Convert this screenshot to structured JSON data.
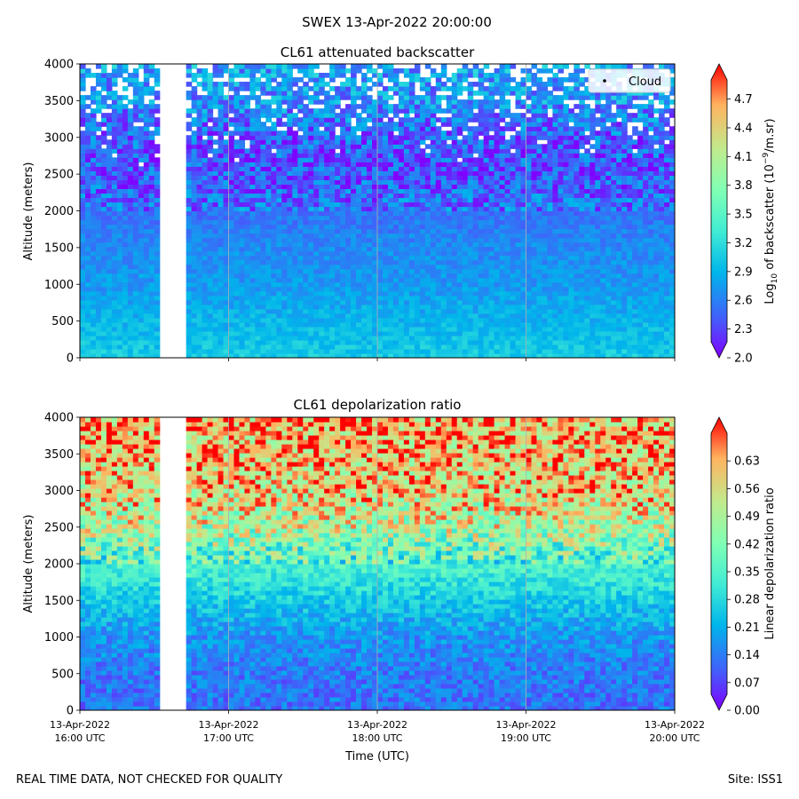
{
  "figure": {
    "suptitle": "SWEX 13-Apr-2022 20:00:00",
    "footer_left": "REAL TIME DATA, NOT CHECKED FOR QUALITY",
    "footer_right": "Site: ISS1"
  },
  "chart_data": [
    {
      "type": "heatmap",
      "title": "CL61 attenuated backscatter",
      "ylabel": "Altitude (meters)",
      "xlabel": "",
      "ylim": [
        0,
        4000
      ],
      "yticks": [
        "0",
        "500",
        "1000",
        "1500",
        "2000",
        "2500",
        "3000",
        "3500",
        "4000"
      ],
      "xlim": [
        "13-Apr-2022 16:00 UTC",
        "13-Apr-2022 20:00 UTC"
      ],
      "xtick_labels_visible": false,
      "data_gap": {
        "start": "16:33 UTC",
        "end": "16:42 UTC"
      },
      "grid": "vertical",
      "legend": {
        "entries": [
          "Cloud"
        ],
        "placement": "upper right"
      },
      "colorbar": {
        "label_prefix": "Log",
        "label_sub": "10",
        "label_mid": " of backscatter (10",
        "label_sup": "−9",
        "label_suffix": "/m.sr)",
        "min": 2.0,
        "max": 4.9,
        "ticks": [
          "2.0",
          "2.3",
          "2.6",
          "2.9",
          "3.2",
          "3.5",
          "3.8",
          "4.1",
          "4.4",
          "4.7"
        ],
        "colormap": "rainbow",
        "extend": "both"
      },
      "profile": [
        {
          "altitude": 0,
          "value": 3.0
        },
        {
          "altitude": 500,
          "value": 2.85
        },
        {
          "altitude": 1000,
          "value": 2.7
        },
        {
          "altitude": 1500,
          "value": 2.62
        },
        {
          "altitude": 2000,
          "value": 2.5
        },
        {
          "altitude": 2500,
          "value": 2.35
        },
        {
          "altitude": 3000,
          "value": 2.4
        },
        {
          "altitude": 3500,
          "value": 2.65
        },
        {
          "altitude": 4000,
          "value": 2.75
        }
      ]
    },
    {
      "type": "heatmap",
      "title": "CL61 depolarization ratio",
      "ylabel": "Altitude (meters)",
      "xlabel": "Time (UTC)",
      "ylim": [
        0,
        4000
      ],
      "yticks": [
        "0",
        "500",
        "1000",
        "1500",
        "2000",
        "2500",
        "3000",
        "3500",
        "4000"
      ],
      "xticks": [
        {
          "date": "13-Apr-2022",
          "time": "16:00 UTC"
        },
        {
          "date": "13-Apr-2022",
          "time": "17:00 UTC"
        },
        {
          "date": "13-Apr-2022",
          "time": "18:00 UTC"
        },
        {
          "date": "13-Apr-2022",
          "time": "19:00 UTC"
        },
        {
          "date": "13-Apr-2022",
          "time": "20:00 UTC"
        }
      ],
      "data_gap": {
        "start": "16:33 UTC",
        "end": "16:42 UTC"
      },
      "grid": "vertical",
      "colorbar": {
        "label": "Linear depolarization ratio",
        "min": 0.0,
        "max": 0.7,
        "ticks": [
          "0.00",
          "0.07",
          "0.14",
          "0.21",
          "0.28",
          "0.35",
          "0.42",
          "0.49",
          "0.56",
          "0.63"
        ],
        "colormap": "rainbow",
        "extend": "both"
      },
      "profile": [
        {
          "altitude": 0,
          "value": 0.12
        },
        {
          "altitude": 500,
          "value": 0.13
        },
        {
          "altitude": 1000,
          "value": 0.16
        },
        {
          "altitude": 1500,
          "value": 0.24
        },
        {
          "altitude": 2000,
          "value": 0.33
        },
        {
          "altitude": 2500,
          "value": 0.47
        },
        {
          "altitude": 3000,
          "value": 0.55
        },
        {
          "altitude": 3500,
          "value": 0.58
        },
        {
          "altitude": 4000,
          "value": 0.6
        }
      ]
    }
  ]
}
